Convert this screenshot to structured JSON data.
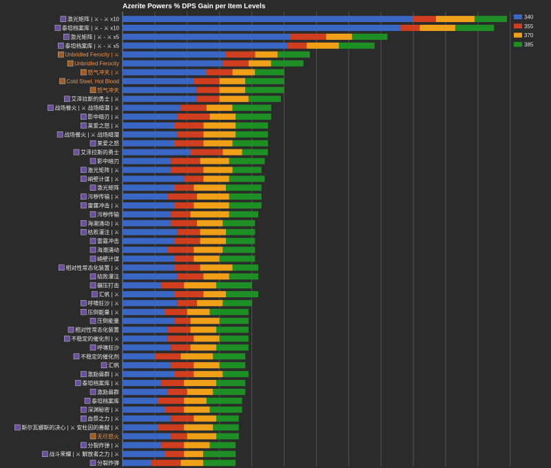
{
  "colors": {
    "background": "#2b2b2b",
    "grid": "#555555",
    "axis": "#8a8a8a",
    "label_default": "#e8e8e8",
    "label_highlight": "#f0944b",
    "icon_sep": "#bdbdbd"
  },
  "chart_data": {
    "type": "bar",
    "orientation": "horizontal",
    "stacked": true,
    "title": "Azerite Powers % DPS Gain per Item Levels",
    "xlim": [
      0,
      13
    ],
    "grid": true,
    "gridlines_x": [
      0,
      1,
      2,
      3,
      4,
      5,
      6,
      7,
      8,
      9,
      10,
      11,
      12
    ],
    "legend_position": "top-right",
    "series": [
      {
        "name": "340",
        "color": "#3b67c4"
      },
      {
        "name": "355",
        "color": "#d03e20"
      },
      {
        "name": "370",
        "color": "#f0a018"
      },
      {
        "name": "385",
        "color": "#1e8f24"
      }
    ],
    "rows": [
      {
        "label": "激光矩阵 | ⚔ - ⚔ x10",
        "icon": "purple-arcane-icon",
        "highlight": false,
        "values": [
          9.0,
          0.7,
          1.2,
          1.0
        ]
      },
      {
        "label": "泰坦档案库 | ⚔ - ⚔ x10",
        "icon": "titan-archive-icon",
        "highlight": false,
        "values": [
          8.6,
          0.6,
          1.1,
          1.2
        ]
      },
      {
        "label": "激光矩阵 | ⚔ - ⚔ x5",
        "icon": "purple-arcane-icon",
        "highlight": false,
        "values": [
          5.2,
          1.1,
          0.8,
          1.1
        ]
      },
      {
        "label": "泰坦档案库 | ⚔ - ⚔ x5",
        "icon": "titan-archive-icon",
        "highlight": false,
        "values": [
          5.1,
          0.6,
          1.0,
          1.1
        ]
      },
      {
        "label": "Unbridled Ferocity | ⚔",
        "icon": "ferocity-icon",
        "highlight": true,
        "values": [
          3.2,
          0.9,
          0.7,
          1.0
        ]
      },
      {
        "label": "Unbridled Ferocity",
        "icon": "ferocity-icon",
        "highlight": true,
        "values": [
          3.1,
          0.8,
          0.7,
          1.0
        ]
      },
      {
        "label": "怒气冲天 | ⚔",
        "icon": "rage-icon",
        "highlight": true,
        "values": [
          2.6,
          0.8,
          0.7,
          0.9
        ]
      },
      {
        "label": "Cold Steel, Hot Blood",
        "icon": "cold-steel-icon",
        "highlight": true,
        "values": [
          2.2,
          0.8,
          0.8,
          1.2
        ]
      },
      {
        "label": "怒气冲天",
        "icon": "rage-icon",
        "highlight": true,
        "values": [
          2.3,
          0.7,
          0.8,
          1.2
        ]
      },
      {
        "label": "艾泽拉斯的勇士 | ⚔",
        "icon": "champion-icon",
        "highlight": false,
        "values": [
          2.3,
          0.7,
          0.9,
          1.0
        ]
      },
      {
        "label": "战场餐火 | ⚔ 战场暗潜 | ⚔",
        "icon": "battle-icon",
        "highlight": false,
        "values": [
          1.8,
          0.8,
          0.8,
          1.2
        ]
      },
      {
        "label": "影中暗刃 | ⚔",
        "icon": "shadow-blade-icon",
        "highlight": false,
        "values": [
          1.7,
          1.0,
          0.8,
          1.1
        ]
      },
      {
        "label": "莱爱之怒 | ⚔",
        "icon": "fury-icon",
        "highlight": false,
        "values": [
          1.6,
          0.9,
          1.0,
          1.0
        ]
      },
      {
        "label": "战场餐火 | ⚔ 战场暗潜",
        "icon": "battle-icon",
        "highlight": false,
        "values": [
          1.7,
          0.8,
          1.0,
          1.0
        ]
      },
      {
        "label": "莱爱之怒",
        "icon": "fury-icon",
        "highlight": false,
        "values": [
          1.6,
          0.9,
          0.9,
          1.1
        ]
      },
      {
        "label": "艾泽拉斯的勇士",
        "icon": "champion-icon",
        "highlight": false,
        "values": [
          2.1,
          1.0,
          0.6,
          0.8
        ]
      },
      {
        "label": "影中暗刃",
        "icon": "shadow-blade-icon",
        "highlight": false,
        "values": [
          1.5,
          0.9,
          0.9,
          1.1
        ]
      },
      {
        "label": "激光矩阵 | ⚔",
        "icon": "purple-arcane-icon",
        "highlight": false,
        "values": [
          1.5,
          1.0,
          0.9,
          0.9
        ]
      },
      {
        "label": "峭壁计谋 | ⚔",
        "icon": "cliff-scheme-icon",
        "highlight": false,
        "values": [
          1.9,
          0.6,
          0.8,
          1.1
        ]
      },
      {
        "label": "激光矩阵",
        "icon": "purple-arcane-icon",
        "highlight": false,
        "values": [
          1.6,
          0.6,
          1.0,
          1.1
        ]
      },
      {
        "label": "污秽传输 | ⚔",
        "icon": "filth-icon",
        "highlight": false,
        "values": [
          1.4,
          0.9,
          1.0,
          1.0
        ]
      },
      {
        "label": "雷霆冲击 | ⚔",
        "icon": "thunder-icon",
        "highlight": false,
        "values": [
          1.6,
          0.6,
          1.1,
          1.0
        ]
      },
      {
        "label": "污秽传输",
        "icon": "filth-icon",
        "highlight": false,
        "values": [
          1.5,
          0.6,
          1.2,
          0.9
        ]
      },
      {
        "label": "海潮涌动 | ⚔",
        "icon": "tidal-icon",
        "highlight": false,
        "values": [
          1.5,
          0.8,
          0.8,
          1.0
        ]
      },
      {
        "label": "枯败灌注 | ⚔",
        "icon": "blight-icon",
        "highlight": false,
        "values": [
          1.7,
          0.7,
          0.8,
          0.9
        ]
      },
      {
        "label": "雷霆冲击",
        "icon": "thunder-icon",
        "highlight": false,
        "values": [
          1.6,
          0.8,
          0.8,
          0.9
        ]
      },
      {
        "label": "海潮涌动",
        "icon": "tidal-icon",
        "highlight": false,
        "values": [
          1.4,
          0.8,
          0.9,
          1.0
        ]
      },
      {
        "label": "峭壁计谋",
        "icon": "cliff-scheme-icon",
        "highlight": false,
        "values": [
          1.6,
          0.6,
          0.8,
          1.1
        ]
      },
      {
        "label": "相对性常态化装置 | ⚔",
        "icon": "relativity-icon",
        "highlight": false,
        "values": [
          1.6,
          0.8,
          1.0,
          0.8
        ]
      },
      {
        "label": "枯败灌注",
        "icon": "blight-icon",
        "highlight": false,
        "values": [
          1.7,
          0.8,
          0.8,
          0.9
        ]
      },
      {
        "label": "碾压打击",
        "icon": "crush-icon",
        "highlight": false,
        "values": [
          1.2,
          0.7,
          1.0,
          1.1
        ]
      },
      {
        "label": "汇帆 | ⚔",
        "icon": "sail-icon",
        "highlight": false,
        "values": [
          1.6,
          0.9,
          0.7,
          1.0
        ]
      },
      {
        "label": "呼啸狂沙 | ⚔",
        "icon": "sandstorm-icon",
        "highlight": false,
        "values": [
          1.7,
          0.6,
          0.8,
          0.9
        ]
      },
      {
        "label": "压倒能量 | ⚔",
        "icon": "power-icon",
        "highlight": false,
        "values": [
          1.3,
          0.7,
          0.7,
          1.2
        ]
      },
      {
        "label": "压倒能量",
        "icon": "power-icon",
        "highlight": false,
        "values": [
          1.6,
          0.5,
          0.9,
          0.9
        ]
      },
      {
        "label": "相对性常态化装置",
        "icon": "relativity-icon",
        "highlight": false,
        "values": [
          1.4,
          0.7,
          0.8,
          1.0
        ]
      },
      {
        "label": "不稳定的催化剂 | ⚔",
        "icon": "catalyst-icon",
        "highlight": false,
        "values": [
          1.4,
          0.8,
          0.8,
          0.9
        ]
      },
      {
        "label": "呼啸狂沙",
        "icon": "sandstorm-icon",
        "highlight": false,
        "values": [
          1.5,
          0.6,
          0.8,
          1.0
        ]
      },
      {
        "label": "不稳定的催化剂",
        "icon": "catalyst-icon",
        "highlight": false,
        "values": [
          1.0,
          0.8,
          1.0,
          1.0
        ]
      },
      {
        "label": "汇帆",
        "icon": "sail-icon",
        "highlight": false,
        "values": [
          1.5,
          0.7,
          0.8,
          0.8
        ]
      },
      {
        "label": "激励兽群 | ⚔",
        "icon": "herd-icon",
        "highlight": false,
        "values": [
          1.6,
          0.6,
          0.9,
          0.8
        ]
      },
      {
        "label": "泰坦档案库 | ⚔",
        "icon": "titan-archive-icon",
        "highlight": false,
        "values": [
          1.2,
          0.7,
          1.0,
          0.9
        ]
      },
      {
        "label": "激励兽群",
        "icon": "herd-icon",
        "highlight": false,
        "values": [
          1.4,
          0.6,
          0.8,
          1.0
        ]
      },
      {
        "label": "泰坦档案库",
        "icon": "titan-archive-icon",
        "highlight": false,
        "values": [
          1.1,
          0.8,
          0.7,
          1.1
        ]
      },
      {
        "label": "深渊秘密 | ⚔",
        "icon": "abyss-icon",
        "highlight": false,
        "values": [
          1.3,
          0.6,
          0.8,
          1.0
        ]
      },
      {
        "label": "血祭之力 | ⚔",
        "icon": "blood-icon",
        "highlight": false,
        "values": [
          1.5,
          0.7,
          0.7,
          0.7
        ]
      },
      {
        "label": "斯尔瓦娜斯的决心 | ⚔ 安杜因的善献 | ⚔",
        "icon": "resolve-icon",
        "highlight": false,
        "values": [
          1.1,
          0.8,
          0.9,
          0.8
        ]
      },
      {
        "label": "无尽怒火",
        "icon": "endless-fury-icon",
        "highlight": true,
        "values": [
          1.5,
          0.5,
          0.9,
          0.7
        ]
      },
      {
        "label": "分裂炸弹 | ⚔",
        "icon": "bomb-icon",
        "highlight": false,
        "values": [
          1.2,
          0.7,
          0.8,
          0.8
        ]
      },
      {
        "label": "战斗荣耀 | ⚔ 解放者之力 | ⚔",
        "icon": "glory-icon",
        "highlight": false,
        "values": [
          1.3,
          0.6,
          0.6,
          1.0
        ]
      },
      {
        "label": "分裂炸弹",
        "icon": "bomb-icon",
        "highlight": false,
        "values": [
          0.9,
          0.9,
          0.7,
          1.0
        ]
      }
    ]
  }
}
